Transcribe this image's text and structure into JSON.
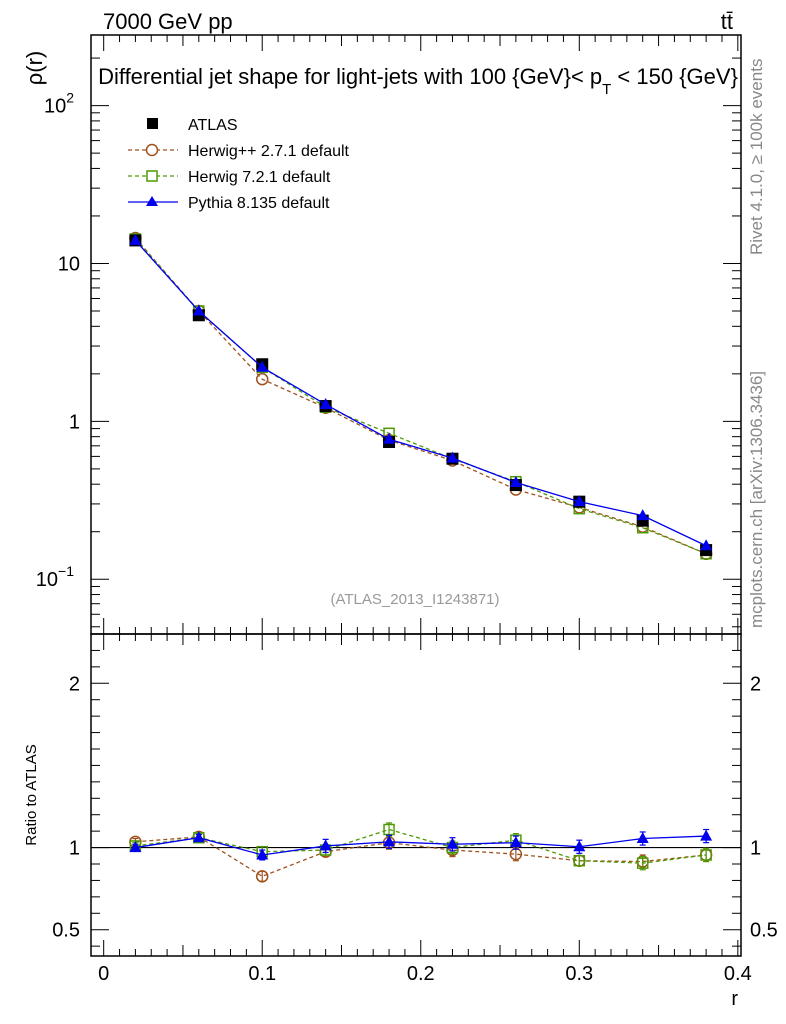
{
  "header": {
    "left": "7000 GeV pp",
    "right": "tt̄"
  },
  "side": {
    "rivet": "Rivet 4.1.0, ≥ 100k events",
    "mcplots": "mcplots.cern.ch [arXiv:1306.3436]"
  },
  "watermark": "(ATLAS_2013_I1243871)",
  "colors": {
    "atlas": "#000000",
    "herwigpp": "#a0521d",
    "herwig7": "#4e9a06",
    "pythia": "#0000ee"
  },
  "chart_data": [
    {
      "type": "line",
      "panel": "main",
      "title_parts": [
        "Differential jet shape for light-jets with 100 {GeV}< p",
        "T",
        " < 150 {GeV}"
      ],
      "ylabel": "ρ(r)",
      "yscale": "log",
      "ylim": [
        0.045,
        280
      ],
      "xlim": [
        -0.008,
        0.402
      ],
      "yticks": [
        {
          "value": 0.1,
          "label": "10",
          "sup": "−1"
        },
        {
          "value": 1,
          "label": "1",
          "sup": ""
        },
        {
          "value": 10,
          "label": "10",
          "sup": ""
        },
        {
          "value": 100,
          "label": "10",
          "sup": "2"
        }
      ],
      "x": [
        0.02,
        0.06,
        0.1,
        0.14,
        0.18,
        0.22,
        0.26,
        0.3,
        0.34,
        0.38
      ],
      "series": [
        {
          "key": "atlas",
          "name": "ATLAS",
          "style": "points",
          "marker": "square-filled",
          "values": [
            14.0,
            4.7,
            2.3,
            1.25,
            0.74,
            0.58,
            0.395,
            0.31,
            0.235,
            0.153
          ]
        },
        {
          "key": "herwigpp",
          "name": "Herwig++ 2.7.1 default",
          "style": "dashed",
          "marker": "circle-open",
          "values": [
            14.5,
            5.0,
            1.85,
            1.22,
            0.76,
            0.565,
            0.37,
            0.285,
            0.215,
            0.145
          ]
        },
        {
          "key": "herwig7",
          "name": "Herwig 7.2.1 default",
          "style": "dashed",
          "marker": "square-open",
          "values": [
            14.3,
            5.0,
            2.2,
            1.23,
            0.84,
            0.58,
            0.415,
            0.28,
            0.212,
            0.145
          ]
        },
        {
          "key": "pythia",
          "name": "Pythia 8.135 default",
          "style": "solid",
          "marker": "triangle-filled",
          "values": [
            14.0,
            5.0,
            2.2,
            1.28,
            0.77,
            0.585,
            0.41,
            0.31,
            0.253,
            0.163
          ]
        }
      ]
    },
    {
      "type": "line",
      "panel": "ratio",
      "ylabel": "Ratio to ATLAS",
      "xlabel": "r",
      "yscale": "linear",
      "ylim": [
        0.34,
        2.3
      ],
      "xlim": [
        -0.008,
        0.402
      ],
      "yticks": [
        0.5,
        1,
        2
      ],
      "xticks": [
        0,
        0.1,
        0.2,
        0.3,
        0.4
      ],
      "x": [
        0.02,
        0.06,
        0.1,
        0.14,
        0.18,
        0.22,
        0.26,
        0.3,
        0.34,
        0.38
      ],
      "series": [
        {
          "key": "herwigpp",
          "name": "Herwig++ 2.7.1 default",
          "style": "dashed",
          "marker": "circle-open",
          "values": [
            1.035,
            1.065,
            0.825,
            0.975,
            1.03,
            0.985,
            0.96,
            0.92,
            0.915,
            0.955
          ],
          "errors": [
            0.02,
            0.02,
            0.03,
            0.03,
            0.04,
            0.04,
            0.04,
            0.03,
            0.04,
            0.04
          ]
        },
        {
          "key": "herwig7",
          "name": "Herwig 7.2.1 default",
          "style": "dashed",
          "marker": "square-open",
          "values": [
            1.01,
            1.06,
            0.975,
            0.985,
            1.11,
            1.0,
            1.045,
            0.92,
            0.905,
            0.955
          ],
          "errors": [
            0.02,
            0.02,
            0.03,
            0.03,
            0.04,
            0.04,
            0.04,
            0.03,
            0.04,
            0.04
          ]
        },
        {
          "key": "pythia",
          "name": "Pythia 8.135 default",
          "style": "solid",
          "marker": "triangle-filled",
          "values": [
            1.0,
            1.06,
            0.955,
            1.01,
            1.035,
            1.02,
            1.03,
            1.005,
            1.055,
            1.07
          ],
          "errors": [
            0.02,
            0.02,
            0.03,
            0.04,
            0.04,
            0.04,
            0.04,
            0.04,
            0.04,
            0.04
          ]
        }
      ]
    }
  ]
}
